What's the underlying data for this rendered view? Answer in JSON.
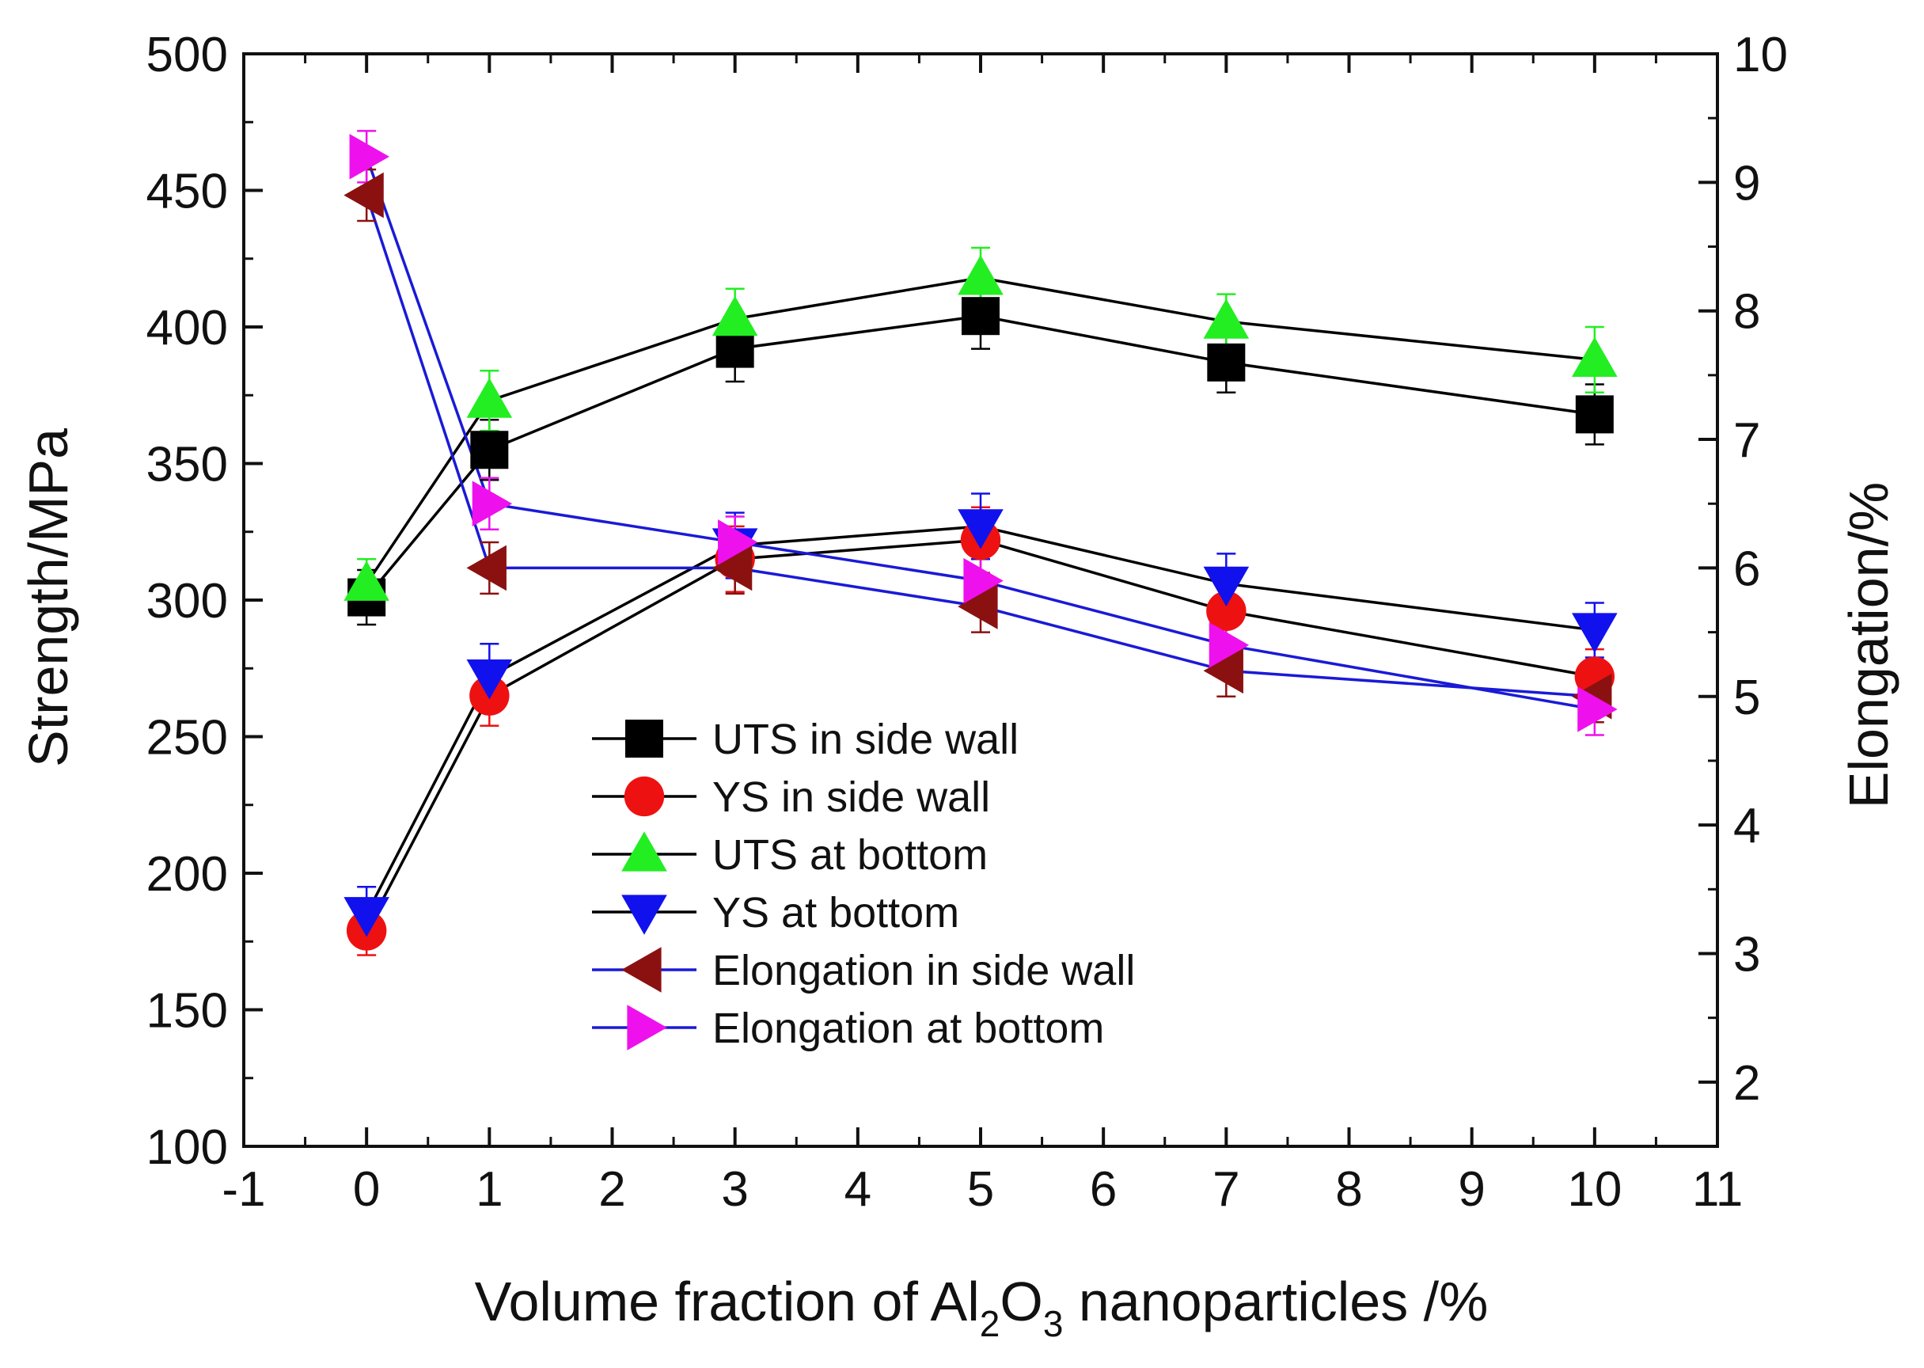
{
  "chart_data": {
    "type": "line",
    "title": "",
    "xlabel_parts": [
      "Volume fraction of Al",
      "2",
      "O",
      "3",
      " nanoparticles /%"
    ],
    "ylabel": "Strength/MPa",
    "y2label": "Elongation/%",
    "xlim": [
      -1,
      11
    ],
    "ylim": [
      100,
      500
    ],
    "y2lim": [
      1.5,
      10
    ],
    "x_ticks": [
      "-1",
      "0",
      "1",
      "2",
      "3",
      "4",
      "5",
      "6",
      "7",
      "8",
      "9",
      "10",
      "11"
    ],
    "y_ticks": [
      "100",
      "150",
      "200",
      "250",
      "300",
      "350",
      "400",
      "450",
      "500"
    ],
    "y2_ticks": [
      "2",
      "3",
      "4",
      "5",
      "6",
      "7",
      "8",
      "9",
      "10"
    ],
    "grid": false,
    "legend_position": "center-left",
    "x": [
      0,
      1,
      3,
      5,
      7,
      10
    ],
    "series": [
      {
        "name": "UTS in side wall",
        "axis": "left",
        "marker": "square",
        "color": "#000000",
        "line_color": "#000000",
        "values": [
          301,
          355,
          392,
          404,
          387,
          368
        ],
        "errors": [
          10,
          11,
          12,
          12,
          11,
          11
        ]
      },
      {
        "name": "YS in side wall",
        "axis": "left",
        "marker": "circle",
        "color": "#ee1111",
        "line_color": "#000000",
        "values": [
          179,
          265,
          315,
          322,
          296,
          272
        ],
        "errors": [
          9,
          11,
          12,
          12,
          11,
          10
        ]
      },
      {
        "name": "UTS at bottom",
        "axis": "left",
        "marker": "triangle-up",
        "color": "#22ee22",
        "line_color": "#000000",
        "values": [
          306,
          373,
          403,
          418,
          402,
          388
        ],
        "errors": [
          9,
          11,
          11,
          11,
          10,
          12
        ]
      },
      {
        "name": "YS at bottom",
        "axis": "left",
        "marker": "triangle-down",
        "color": "#1111ee",
        "line_color": "#000000",
        "values": [
          185,
          272,
          320,
          327,
          306,
          289
        ],
        "errors": [
          10,
          12,
          12,
          12,
          11,
          10
        ]
      },
      {
        "name": "Elongation in side wall",
        "axis": "right",
        "marker": "triangle-left",
        "color": "#8b1111",
        "line_color": "#1a1ad6",
        "values": [
          8.9,
          6.0,
          6.0,
          5.7,
          5.2,
          5.0
        ],
        "errors": [
          0.2,
          0.2,
          0.2,
          0.2,
          0.2,
          0.2
        ]
      },
      {
        "name": "Elongation at bottom",
        "axis": "right",
        "marker": "triangle-right",
        "color": "#ee11ee",
        "line_color": "#1a1ad6",
        "values": [
          9.2,
          6.5,
          6.2,
          5.9,
          5.4,
          4.9
        ],
        "errors": [
          0.2,
          0.2,
          0.2,
          0.2,
          0.2,
          0.2
        ]
      }
    ]
  }
}
